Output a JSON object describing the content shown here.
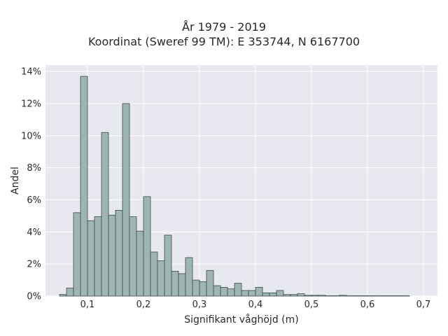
{
  "chart_data": {
    "type": "bar",
    "title": [
      "År 1979 - 2019",
      "Koordinat (Sweref 99 TM): E 353744, N 6167700"
    ],
    "xlabel": "Signifikant våghöjd (m)",
    "ylabel": "Andel",
    "xlim": [
      0.025,
      0.725
    ],
    "ylim": [
      0,
      14.4
    ],
    "x_ticks": [
      0.1,
      0.2,
      0.3,
      0.4,
      0.5,
      0.6,
      0.7
    ],
    "x_tick_labels": [
      "0,1",
      "0,2",
      "0,3",
      "0,4",
      "0,5",
      "0,6",
      "0,7"
    ],
    "y_ticks": [
      0,
      2,
      4,
      6,
      8,
      10,
      12,
      14
    ],
    "y_tick_labels": [
      "0%",
      "2%",
      "4%",
      "6%",
      "8%",
      "10%",
      "12%",
      "14%"
    ],
    "bin_width": 0.0125,
    "bin_start": 0.05,
    "values": [
      0.1,
      0.5,
      5.2,
      13.7,
      4.7,
      4.95,
      10.2,
      5.05,
      5.35,
      12.0,
      4.95,
      4.05,
      6.2,
      2.75,
      2.2,
      3.8,
      1.55,
      1.4,
      2.4,
      1.0,
      0.9,
      1.6,
      0.65,
      0.55,
      0.45,
      0.8,
      0.35,
      0.35,
      0.55,
      0.2,
      0.2,
      0.35,
      0.1,
      0.1,
      0.15,
      0.05,
      0.05,
      0.05,
      0.02,
      0.02,
      0.05,
      0.02,
      0.02,
      0.02,
      0.02,
      0.02,
      0.02,
      0.02,
      0.02,
      0.02
    ],
    "grid": true,
    "colors": {
      "bar_fill": "#9fb5b5",
      "bar_edge": "#3d4a4a",
      "plot_bg": "#e8e8f0",
      "grid": "#ffffff"
    }
  }
}
